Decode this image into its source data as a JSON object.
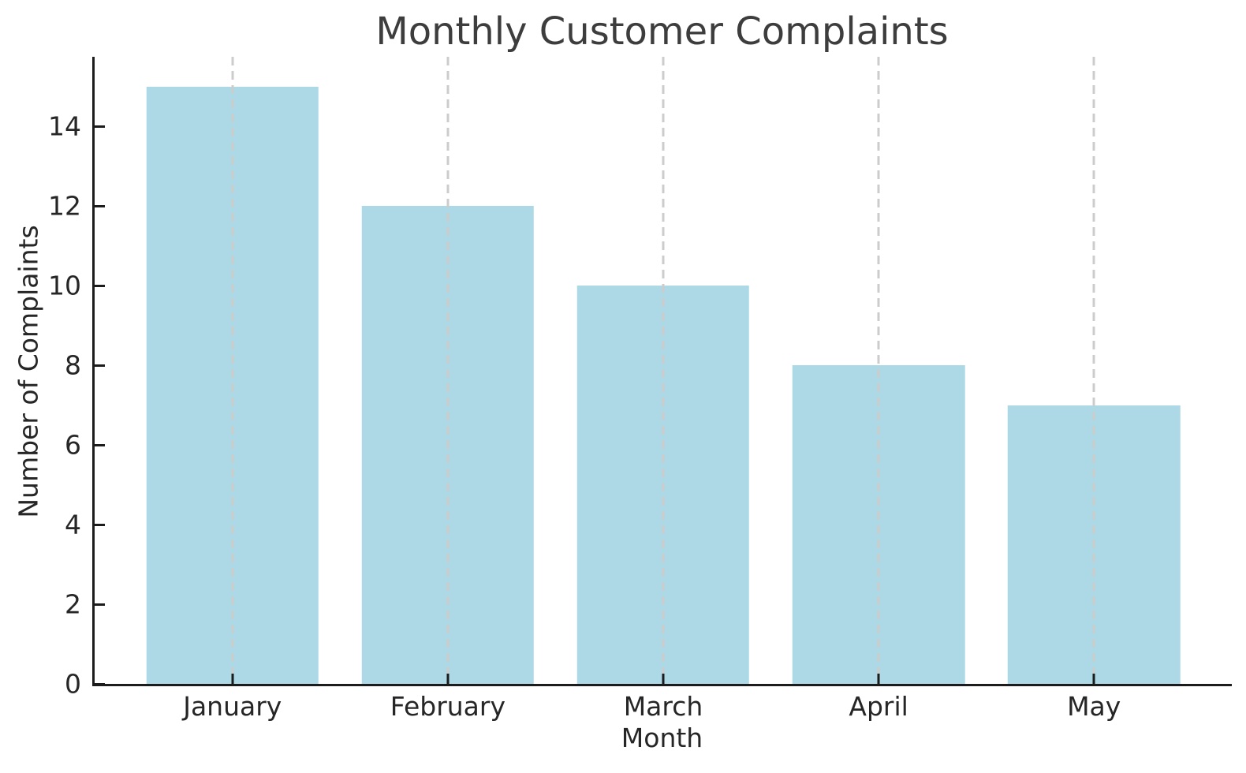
{
  "chart_data": {
    "type": "bar",
    "title": "Monthly Customer Complaints",
    "xlabel": "Month",
    "ylabel": "Number of Complaints",
    "categories": [
      "January",
      "February",
      "March",
      "April",
      "May"
    ],
    "values": [
      15,
      12,
      10,
      8,
      7
    ],
    "ylim": [
      0,
      15.75
    ],
    "yticks": [
      0,
      2,
      4,
      6,
      8,
      10,
      12,
      14
    ],
    "bar_color": "#ADD8E6",
    "grid_color": "#cccccc",
    "spine_color": "#1c1c1c",
    "tick_label_color": "#262626",
    "title_color": "#3d3d3d",
    "grid": "vertical dashed lines at each category, drawn over bars",
    "legend": "none",
    "visible_spines": [
      "left",
      "bottom"
    ],
    "tick_direction": "in"
  }
}
